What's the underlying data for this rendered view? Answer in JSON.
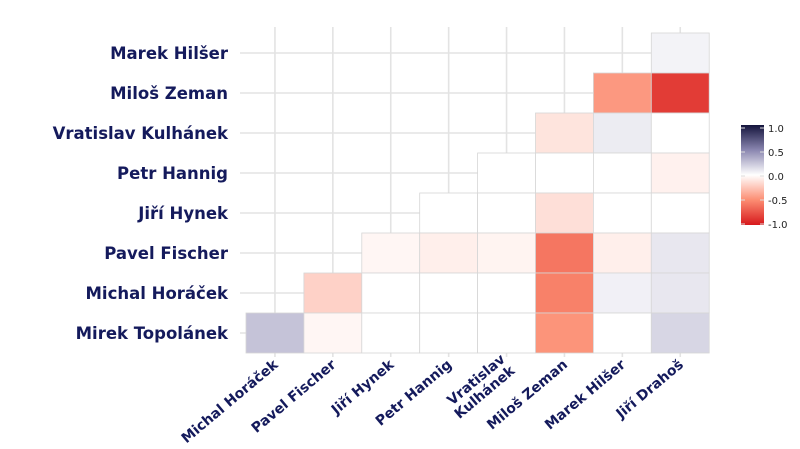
{
  "chart_data": {
    "type": "heatmap",
    "rows": [
      "Marek Hilšer",
      "Miloš Zeman",
      "Vratislav Kulhánek",
      "Petr Hannig",
      "Jiří Hynek",
      "Pavel Fischer",
      "Michal Horáček",
      "Mirek Topolánek"
    ],
    "columns": [
      "Michal Horáček",
      "Pavel Fischer",
      "Jiří Hynek",
      "Petr Hannig",
      "Vratislav Kulhánek",
      "Miloš Zeman",
      "Marek Hilšer",
      "Jiří Drahoš"
    ],
    "values": [
      [
        null,
        null,
        null,
        null,
        null,
        null,
        null,
        0.05
      ],
      [
        null,
        null,
        null,
        null,
        null,
        null,
        -0.45,
        -0.85
      ],
      [
        null,
        null,
        null,
        null,
        null,
        -0.12,
        0.08,
        0.0
      ],
      [
        null,
        null,
        null,
        null,
        0.0,
        0.0,
        0.0,
        -0.06
      ],
      [
        null,
        null,
        null,
        0.0,
        0.0,
        -0.14,
        0.0,
        0.0
      ],
      [
        null,
        null,
        -0.04,
        -0.07,
        -0.05,
        -0.6,
        -0.07,
        0.1
      ],
      [
        null,
        -0.2,
        0.0,
        0.0,
        0.0,
        -0.55,
        0.06,
        0.1
      ],
      [
        0.25,
        -0.04,
        0.0,
        0.0,
        0.0,
        -0.47,
        0.0,
        0.17
      ]
    ],
    "legend": {
      "ticks": [
        "1.0",
        "0.5",
        "0.0",
        "-0.5",
        "-1.0"
      ],
      "range": [
        -1,
        1
      ],
      "placement": "right"
    },
    "colors": {
      "negative": "#d7191c",
      "mid_negative": "#fc8d72",
      "zero": "#ffffff",
      "mid_positive": "#8a86b0",
      "positive": "#14143c"
    },
    "grid": true
  }
}
